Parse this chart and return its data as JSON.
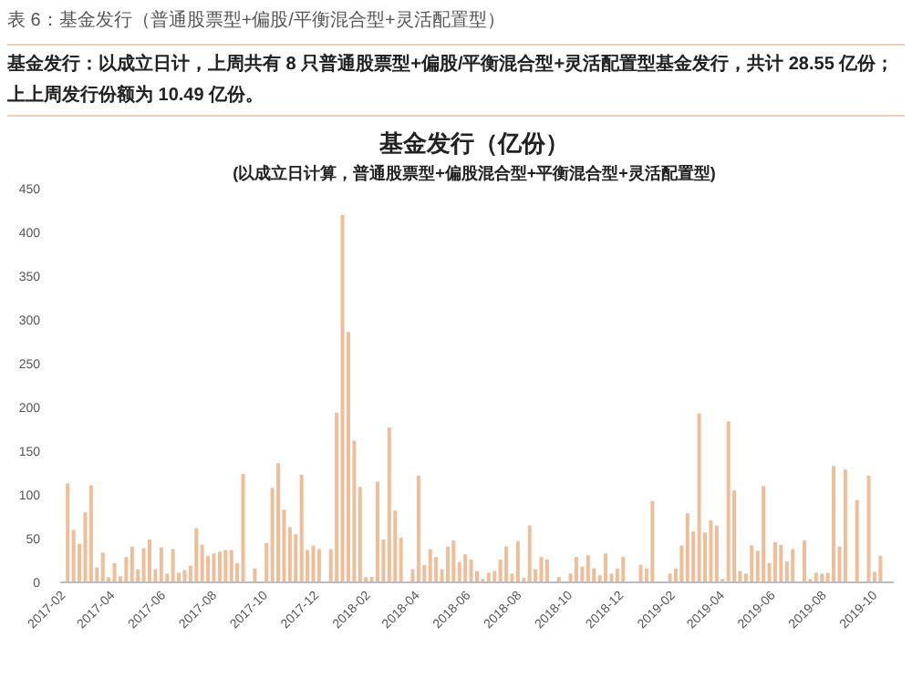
{
  "chart_data": {
    "type": "bar",
    "title": "基金发行（亿份）",
    "subtitle": "(以成立日计算，普通股票型+偏股混合型+平衡混合型+灵活配置型)",
    "annotations": [
      "表 6：基金发行（普通股票型+偏股/平衡混合型+灵活配置型）",
      "基金发行：以成立日计，上周共有 8 只普通股票型+偏股/平衡混合型+灵活配置型基金发行，共计 28.55 亿份；上上周发行份额为 10.49 亿份。"
    ],
    "x": [
      "2017-02-03",
      "2017-02-10",
      "2017-02-17",
      "2017-02-24",
      "2017-03-03",
      "2017-03-10",
      "2017-03-17",
      "2017-03-24",
      "2017-03-31",
      "2017-04-07",
      "2017-04-14",
      "2017-04-21",
      "2017-04-28",
      "2017-05-05",
      "2017-05-12",
      "2017-05-19",
      "2017-05-26",
      "2017-06-02",
      "2017-06-09",
      "2017-06-16",
      "2017-06-23",
      "2017-06-30",
      "2017-07-07",
      "2017-07-14",
      "2017-07-21",
      "2017-07-28",
      "2017-08-04",
      "2017-08-11",
      "2017-08-18",
      "2017-08-25",
      "2017-09-01",
      "2017-09-08",
      "2017-09-15",
      "2017-09-22",
      "2017-09-29",
      "2017-10-06",
      "2017-10-13",
      "2017-10-20",
      "2017-10-27",
      "2017-11-03",
      "2017-11-10",
      "2017-11-17",
      "2017-11-24",
      "2017-12-01",
      "2017-12-08",
      "2017-12-15",
      "2017-12-22",
      "2017-12-29",
      "2018-01-05",
      "2018-01-12",
      "2018-01-19",
      "2018-01-26",
      "2018-02-02",
      "2018-02-09",
      "2018-02-16",
      "2018-02-23",
      "2018-03-02",
      "2018-03-09",
      "2018-03-16",
      "2018-03-23",
      "2018-03-30",
      "2018-04-06",
      "2018-04-13",
      "2018-04-20",
      "2018-04-27",
      "2018-05-04",
      "2018-05-11",
      "2018-05-18",
      "2018-05-25",
      "2018-06-01",
      "2018-06-08",
      "2018-06-15",
      "2018-06-22",
      "2018-06-29",
      "2018-07-06",
      "2018-07-13",
      "2018-07-20",
      "2018-07-27",
      "2018-08-03",
      "2018-08-10",
      "2018-08-17",
      "2018-08-24",
      "2018-08-31",
      "2018-09-07",
      "2018-09-14",
      "2018-09-21",
      "2018-09-28",
      "2018-10-05",
      "2018-10-12",
      "2018-10-19",
      "2018-10-26",
      "2018-11-02",
      "2018-11-09",
      "2018-11-16",
      "2018-11-23",
      "2018-11-30",
      "2018-12-07",
      "2018-12-14",
      "2018-12-21",
      "2018-12-28",
      "2019-01-04",
      "2019-01-11",
      "2019-01-18",
      "2019-01-25",
      "2019-02-01",
      "2019-02-08",
      "2019-02-15",
      "2019-02-22",
      "2019-03-01",
      "2019-03-08",
      "2019-03-15",
      "2019-03-22",
      "2019-03-29",
      "2019-04-05",
      "2019-04-12",
      "2019-04-19",
      "2019-04-26",
      "2019-05-03",
      "2019-05-10",
      "2019-05-17",
      "2019-05-24",
      "2019-05-31",
      "2019-06-07",
      "2019-06-14",
      "2019-06-21",
      "2019-06-28",
      "2019-07-05",
      "2019-07-12",
      "2019-07-19",
      "2019-07-26",
      "2019-08-02",
      "2019-08-09",
      "2019-08-16",
      "2019-08-23",
      "2019-08-30",
      "2019-09-06",
      "2019-09-13",
      "2019-09-20",
      "2019-09-27",
      "2019-10-04"
    ],
    "values": [
      112,
      59,
      43,
      79,
      110,
      16,
      33,
      5,
      21,
      6,
      28,
      40,
      14,
      38,
      48,
      14,
      39,
      9,
      37,
      10,
      13,
      18,
      61,
      42,
      29,
      32,
      34,
      36,
      36,
      21,
      123,
      0,
      15,
      0,
      44,
      107,
      135,
      82,
      62,
      54,
      122,
      36,
      41,
      37,
      0,
      37,
      193,
      419,
      285,
      161,
      108,
      5,
      5,
      114,
      48,
      176,
      81,
      50,
      0,
      14,
      121,
      19,
      37,
      28,
      14,
      40,
      47,
      22,
      31,
      25,
      12,
      3,
      10,
      12,
      25,
      40,
      9,
      46,
      4,
      64,
      14,
      28,
      25,
      0,
      5,
      0,
      9,
      28,
      17,
      30,
      15,
      7,
      32,
      9,
      15,
      28,
      0,
      0,
      19,
      15,
      92,
      0,
      0,
      9,
      15,
      41,
      78,
      57,
      192,
      56,
      70,
      64,
      3,
      183,
      104,
      12,
      9,
      41,
      35,
      109,
      21,
      45,
      42,
      23,
      37,
      0,
      47,
      3,
      10,
      9,
      10,
      132,
      40,
      128,
      0,
      93,
      0,
      121,
      11,
      29
    ],
    "color": "#efbe98",
    "xlim": [
      "2017-01-25",
      "2019-10-20"
    ],
    "xticks": [
      "2017-02",
      "2017-04",
      "2017-06",
      "2017-08",
      "2017-10",
      "2017-12",
      "2018-02",
      "2018-04",
      "2018-06",
      "2018-08",
      "2018-10",
      "2018-12",
      "2019-02",
      "2019-04",
      "2019-06",
      "2019-08",
      "2019-10"
    ],
    "ylim": [
      0,
      450
    ],
    "yticks": [
      0,
      50,
      100,
      150,
      200,
      250,
      300,
      350,
      400,
      450
    ]
  }
}
